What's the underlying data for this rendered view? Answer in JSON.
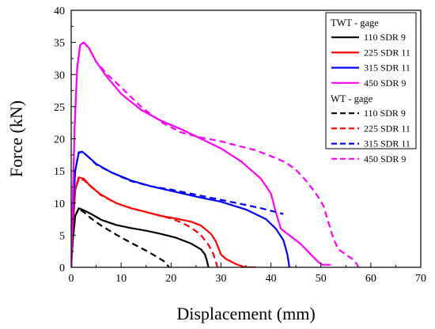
{
  "chart_data": {
    "type": "line",
    "title": "",
    "xlabel": "Displacement (mm)",
    "ylabel": "Force (kN)",
    "xlim": [
      0,
      70
    ],
    "ylim": [
      0,
      40
    ],
    "xticks": [
      "0",
      "10",
      "20",
      "30",
      "40",
      "50",
      "60",
      "70"
    ],
    "yticks": [
      "0",
      "5",
      "10",
      "15",
      "20",
      "25",
      "30",
      "35",
      "40"
    ],
    "grid": false,
    "legend_position": "top-right",
    "legend_groups": [
      {
        "title": "TWT - gage",
        "style": "solid"
      },
      {
        "title": "WT - gage",
        "style": "dashed"
      }
    ],
    "series": [
      {
        "name": "110 SDR 9",
        "group": "TWT - gage",
        "color": "#000000",
        "style": "solid",
        "x": [
          0,
          0.3,
          0.8,
          1.5,
          2.5,
          4,
          6,
          9,
          12,
          15,
          18,
          21,
          24,
          26,
          26.8,
          27.2,
          27.4,
          27.5
        ],
        "y": [
          0,
          4,
          8,
          9.2,
          8.9,
          8.3,
          7.4,
          6.6,
          6.1,
          5.7,
          5.2,
          4.6,
          3.7,
          2.8,
          2,
          1,
          0.3,
          0
        ]
      },
      {
        "name": "225 SDR 11",
        "group": "TWT - gage",
        "color": "#ff0000",
        "style": "solid",
        "x": [
          0,
          0.3,
          0.8,
          1.5,
          2.5,
          4,
          6,
          9,
          12,
          15,
          18,
          21,
          24,
          26,
          28,
          29,
          30,
          31,
          33,
          34.5,
          35,
          37
        ],
        "y": [
          0,
          6,
          12,
          14,
          13.8,
          12.5,
          11.3,
          10,
          9.2,
          8.6,
          8,
          7.6,
          7.1,
          6.5,
          5.2,
          4,
          2,
          1.3,
          0.5,
          0.1,
          0,
          0
        ]
      },
      {
        "name": "315 SDR 11",
        "group": "TWT - gage",
        "color": "#0000ff",
        "style": "solid",
        "x": [
          0,
          0.3,
          0.8,
          1.5,
          2.2,
          3,
          5,
          8,
          12,
          16,
          20,
          25,
          30,
          35,
          39,
          41,
          42.5,
          43.3,
          43.6,
          43.7
        ],
        "y": [
          0,
          8,
          15,
          17.8,
          18,
          17.5,
          16.1,
          14.8,
          13.5,
          12.6,
          11.9,
          11,
          10.2,
          9,
          7.5,
          6,
          4.2,
          2,
          0.5,
          0
        ]
      },
      {
        "name": "450 SDR 9",
        "group": "TWT - gage",
        "color": "#ff00ff",
        "style": "solid",
        "x": [
          0,
          0.3,
          0.7,
          1.2,
          1.8,
          2.5,
          3.5,
          5,
          7,
          10,
          14,
          18,
          22,
          26,
          30,
          34,
          38,
          40,
          41,
          42,
          44,
          46,
          48,
          49.5,
          50.3,
          51,
          52
        ],
        "y": [
          0,
          10,
          22,
          31,
          34.6,
          35,
          34.2,
          32,
          29.8,
          27,
          24.5,
          22.8,
          21.5,
          20,
          18.5,
          16.5,
          13.8,
          11.5,
          8.5,
          6,
          4.8,
          3.6,
          2,
          0.8,
          0.4,
          0.4,
          0.4
        ]
      },
      {
        "name": "110 SDR 9",
        "group": "WT - gage",
        "color": "#000000",
        "style": "dashed",
        "x": [
          0,
          0.3,
          0.8,
          1.5,
          2.5,
          4,
          6,
          9,
          12,
          15,
          17,
          18.5,
          19.3,
          19.6
        ],
        "y": [
          0,
          4,
          8,
          9.1,
          8.6,
          7.6,
          6.5,
          5.1,
          3.8,
          2.6,
          1.7,
          1,
          0.3,
          0
        ]
      },
      {
        "name": "225 SDR 11",
        "group": "WT - gage",
        "color": "#ff0000",
        "style": "dashed",
        "x": [
          0,
          0.3,
          0.8,
          1.5,
          2.5,
          4,
          6,
          9,
          12,
          15,
          18,
          20,
          22,
          24,
          26,
          27.5,
          28.5,
          29,
          29.3
        ],
        "y": [
          0,
          6,
          12,
          13.8,
          13.6,
          12.6,
          11.2,
          10,
          9.2,
          8.6,
          8,
          7.6,
          7,
          6.2,
          5,
          3.5,
          2,
          0.8,
          0
        ]
      },
      {
        "name": "315 SDR 11",
        "group": "WT - gage",
        "color": "#0000ff",
        "style": "dashed",
        "x": [
          0,
          0.3,
          0.8,
          1.5,
          2.2,
          3,
          5,
          8,
          12,
          16,
          20,
          25,
          30,
          35,
          38,
          40,
          42,
          42.5
        ],
        "y": [
          0,
          8,
          15,
          17.9,
          18,
          17.5,
          16,
          14.8,
          13.4,
          12.6,
          12.1,
          11.3,
          10.5,
          9.7,
          9.2,
          8.8,
          8.4,
          8.3
        ]
      },
      {
        "name": "450 SDR 9",
        "group": "WT - gage",
        "color": "#ff00ff",
        "style": "dashed",
        "x": [
          0,
          0.3,
          0.7,
          1.2,
          1.8,
          2.5,
          3.5,
          5,
          7,
          10,
          14,
          18,
          22,
          26,
          30,
          34,
          37,
          39,
          41,
          43,
          45,
          47,
          49,
          50.5,
          51.5,
          52.5,
          53.5,
          55,
          56.5,
          57.2,
          57.5
        ],
        "y": [
          0,
          10,
          22,
          31,
          34.6,
          35,
          34.2,
          32,
          30.2,
          28,
          25,
          22.6,
          21,
          20.2,
          19.6,
          18.8,
          18.2,
          17.6,
          17,
          16.3,
          15.2,
          13.5,
          11.5,
          9.6,
          7,
          4.5,
          2.8,
          2,
          1.2,
          0.5,
          0
        ]
      }
    ]
  }
}
